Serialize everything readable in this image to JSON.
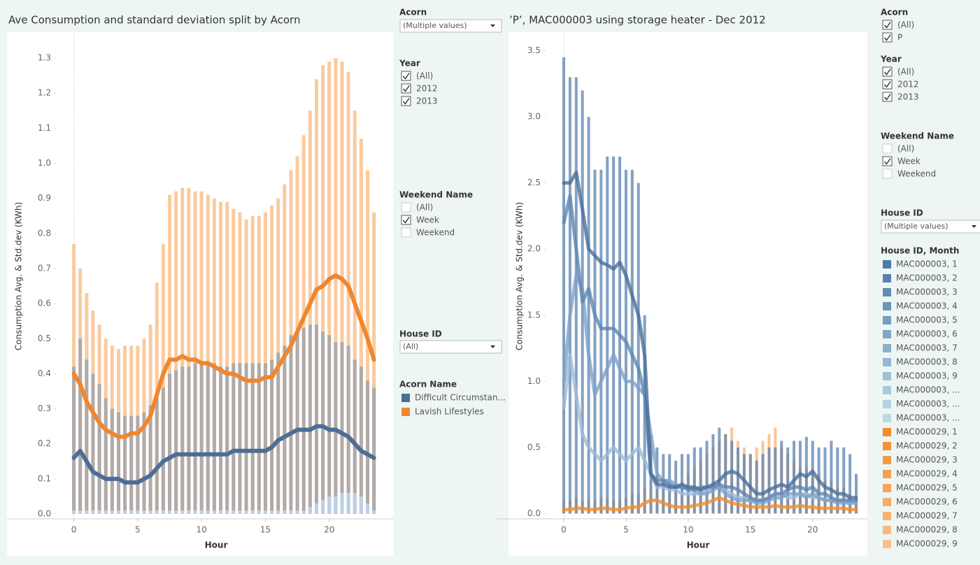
{
  "chart_data": [
    {
      "type": "combo",
      "title": "Ave Consumption and standard deviation split by Acorn",
      "xlabel": "Hour",
      "ylabel": "Consumption Avg. & Std.dev (KWh)",
      "x": [
        0,
        0.5,
        1,
        1.5,
        2,
        2.5,
        3,
        3.5,
        4,
        4.5,
        5,
        5.5,
        6,
        6.5,
        7,
        7.5,
        8,
        8.5,
        9,
        9.5,
        10,
        10.5,
        11,
        11.5,
        12,
        12.5,
        13,
        13.5,
        14,
        14.5,
        15,
        15.5,
        16,
        16.5,
        17,
        17.5,
        18,
        18.5,
        19,
        19.5,
        20,
        20.5,
        21,
        21.5,
        22,
        22.5,
        23,
        23.5
      ],
      "xlim": [
        -1.4,
        25
      ],
      "xticks": [
        0,
        5,
        10,
        15,
        20
      ],
      "ylim": [
        -0.014,
        1.37
      ],
      "yticks": [
        {
          "value": 0,
          "label": "0.0"
        },
        0.1,
        0.2,
        0.3,
        0.4,
        0.5,
        0.6,
        0.7,
        0.8,
        0.9,
        {
          "value": 1,
          "label": "1.0"
        },
        1.1,
        1.2,
        1.3
      ],
      "bars": [
        {
          "color": "#f9cb9f",
          "values": [
            0.77,
            0.7,
            0.63,
            0.58,
            0.54,
            0.5,
            0.48,
            0.47,
            0.48,
            0.48,
            0.48,
            0.5,
            0.54,
            0.66,
            0.77,
            0.91,
            0.92,
            0.93,
            0.93,
            0.92,
            0.92,
            0.91,
            0.9,
            0.89,
            0.89,
            0.87,
            0.86,
            0.84,
            0.85,
            0.85,
            0.86,
            0.88,
            0.9,
            0.94,
            0.98,
            1.02,
            1.08,
            1.15,
            1.24,
            1.28,
            1.29,
            1.3,
            1.29,
            1.26,
            1.15,
            1.07,
            0.98,
            0.86
          ]
        },
        {
          "color": "#b0aaa8",
          "values": [
            0.42,
            0.5,
            0.44,
            0.4,
            0.37,
            0.33,
            0.3,
            0.29,
            0.28,
            0.28,
            0.28,
            0.29,
            0.31,
            0.33,
            0.36,
            0.4,
            0.41,
            0.42,
            0.42,
            0.43,
            0.43,
            0.43,
            0.43,
            0.42,
            0.42,
            0.43,
            0.43,
            0.43,
            0.43,
            0.43,
            0.43,
            0.44,
            0.46,
            0.48,
            0.51,
            0.52,
            0.53,
            0.54,
            0.54,
            0.52,
            0.51,
            0.49,
            0.49,
            0.48,
            0.44,
            0.42,
            0.38,
            0.36
          ]
        },
        {
          "color": "#bcd0e6",
          "values": [
            0.01,
            0.01,
            0.01,
            0.01,
            0.01,
            0.01,
            0.01,
            0.01,
            0.01,
            0.01,
            0.01,
            0.01,
            0.01,
            0.01,
            0.01,
            0.01,
            0.01,
            0.01,
            0.01,
            0.01,
            0.01,
            0.01,
            0.01,
            0.01,
            0.01,
            0.01,
            0.01,
            0.01,
            0.01,
            0.01,
            0.01,
            0.01,
            0.01,
            0.01,
            0.01,
            0.01,
            0.01,
            0.02,
            0.03,
            0.04,
            0.05,
            0.05,
            0.06,
            0.06,
            0.06,
            0.05,
            0.03,
            0.01
          ]
        }
      ],
      "legend_title": "Acorn Name",
      "series": [
        {
          "name": "Difficult Circumstan...",
          "color": "#4e6d96",
          "values": [
            0.16,
            0.18,
            0.15,
            0.12,
            0.11,
            0.1,
            0.1,
            0.1,
            0.09,
            0.09,
            0.09,
            0.1,
            0.11,
            0.13,
            0.15,
            0.16,
            0.17,
            0.17,
            0.17,
            0.17,
            0.17,
            0.17,
            0.17,
            0.17,
            0.17,
            0.18,
            0.18,
            0.18,
            0.18,
            0.18,
            0.18,
            0.19,
            0.21,
            0.22,
            0.23,
            0.24,
            0.24,
            0.24,
            0.25,
            0.25,
            0.24,
            0.24,
            0.23,
            0.22,
            0.2,
            0.18,
            0.17,
            0.16
          ]
        },
        {
          "name": "Lavish Lifestyles",
          "color": "#f0862e",
          "values": [
            0.4,
            0.37,
            0.32,
            0.29,
            0.26,
            0.24,
            0.23,
            0.22,
            0.22,
            0.23,
            0.23,
            0.25,
            0.28,
            0.34,
            0.4,
            0.44,
            0.44,
            0.45,
            0.44,
            0.44,
            0.43,
            0.43,
            0.42,
            0.41,
            0.4,
            0.4,
            0.39,
            0.38,
            0.38,
            0.38,
            0.39,
            0.39,
            0.42,
            0.45,
            0.48,
            0.52,
            0.56,
            0.6,
            0.64,
            0.65,
            0.67,
            0.68,
            0.67,
            0.65,
            0.6,
            0.55,
            0.5,
            0.44
          ]
        }
      ]
    },
    {
      "type": "combo",
      "title": "’P’, MAC000003 using storage heater - Dec 2012",
      "xlabel": "Hour",
      "ylabel": "Consumption Avg. & Std.dev (KWh)",
      "x": [
        0,
        0.5,
        1,
        1.5,
        2,
        2.5,
        3,
        3.5,
        4,
        4.5,
        5,
        5.5,
        6,
        6.5,
        7,
        7.5,
        8,
        8.5,
        9,
        9.5,
        10,
        10.5,
        11,
        11.5,
        12,
        12.5,
        13,
        13.5,
        14,
        14.5,
        15,
        15.5,
        16,
        16.5,
        17,
        17.5,
        18,
        18.5,
        19,
        19.5,
        20,
        20.5,
        21,
        21.5,
        22,
        22.5,
        23,
        23.5
      ],
      "xlim": [
        -1.46,
        24.4
      ],
      "xticks": [
        0,
        5,
        10,
        15,
        20
      ],
      "ylim": [
        -0.04,
        3.63
      ],
      "yticks": [
        {
          "value": 0,
          "label": "0.0"
        },
        0.5,
        {
          "value": 1,
          "label": "1.0"
        },
        1.5,
        {
          "value": 2,
          "label": "2.0"
        },
        2.5,
        {
          "value": 3,
          "label": "3.0"
        },
        3.5
      ],
      "bars": [
        {
          "color": "#f6b27a",
          "values": [
            0.1,
            0.1,
            0.12,
            0.1,
            0.1,
            0.1,
            0.12,
            0.12,
            0.1,
            0.1,
            0.12,
            0.15,
            0.15,
            0.2,
            0.25,
            0.3,
            0.25,
            0.2,
            0.2,
            0.25,
            0.3,
            0.35,
            0.4,
            0.45,
            0.5,
            0.55,
            0.6,
            0.65,
            0.55,
            0.5,
            0.45,
            0.5,
            0.55,
            0.6,
            0.65,
            0.5,
            0.45,
            0.4,
            0.35,
            0.35,
            0.3,
            0.3,
            0.25,
            0.25,
            0.2,
            0.2,
            0.15,
            0.1
          ]
        },
        {
          "color": "#5b82ad",
          "values": [
            3.45,
            3.3,
            3.3,
            3.2,
            3.0,
            2.6,
            2.6,
            2.7,
            2.7,
            2.7,
            2.6,
            2.6,
            2.5,
            1.5,
            0.6,
            0.5,
            0.45,
            0.45,
            0.4,
            0.45,
            0.45,
            0.5,
            0.5,
            0.55,
            0.6,
            0.65,
            0.6,
            0.55,
            0.5,
            0.45,
            0.45,
            0.4,
            0.45,
            0.5,
            0.5,
            0.55,
            0.5,
            0.55,
            0.55,
            0.58,
            0.55,
            0.5,
            0.5,
            0.55,
            0.5,
            0.5,
            0.45,
            0.3
          ]
        }
      ],
      "series": [
        {
          "color": "#9fbcda",
          "values": [
            0.8,
            1.2,
            0.9,
            0.6,
            0.5,
            0.45,
            0.4,
            0.45,
            0.5,
            0.45,
            0.4,
            0.45,
            0.5,
            0.4,
            0.3,
            0.2,
            0.2,
            0.18,
            0.18,
            0.15,
            0.15,
            0.15,
            0.15,
            0.18,
            0.2,
            0.2,
            0.18,
            0.15,
            0.12,
            0.12,
            0.1,
            0.1,
            0.1,
            0.12,
            0.15,
            0.15,
            0.12,
            0.12,
            0.15,
            0.15,
            0.12,
            0.12,
            0.1,
            0.1,
            0.1,
            0.1,
            0.08,
            0.08
          ]
        },
        {
          "color": "#7fa3c9",
          "values": [
            1.0,
            1.5,
            1.8,
            1.7,
            1.2,
            0.9,
            1.0,
            1.1,
            1.2,
            1.1,
            1.0,
            1.0,
            0.95,
            0.9,
            0.6,
            0.3,
            0.25,
            0.25,
            0.22,
            0.2,
            0.2,
            0.18,
            0.15,
            0.15,
            0.18,
            0.2,
            0.15,
            0.12,
            0.1,
            0.1,
            0.1,
            0.08,
            0.08,
            0.1,
            0.12,
            0.12,
            0.15,
            0.15,
            0.15,
            0.12,
            0.15,
            0.12,
            0.1,
            0.1,
            0.08,
            0.08,
            0.08,
            0.08
          ]
        },
        {
          "color": "#5f87b3",
          "values": [
            2.2,
            2.4,
            2.0,
            1.6,
            1.7,
            1.5,
            1.4,
            1.4,
            1.4,
            1.35,
            1.3,
            1.2,
            1.1,
            0.9,
            0.3,
            0.25,
            0.25,
            0.22,
            0.2,
            0.2,
            0.18,
            0.18,
            0.2,
            0.2,
            0.2,
            0.22,
            0.2,
            0.2,
            0.18,
            0.15,
            0.12,
            0.1,
            0.1,
            0.12,
            0.15,
            0.15,
            0.18,
            0.2,
            0.2,
            0.18,
            0.2,
            0.15,
            0.15,
            0.12,
            0.1,
            0.1,
            0.1,
            0.1
          ]
        },
        {
          "color": "#4a6f9c",
          "values": [
            2.5,
            2.5,
            2.58,
            2.3,
            2.0,
            1.95,
            1.9,
            1.88,
            1.85,
            1.9,
            1.8,
            1.65,
            1.5,
            1.2,
            0.3,
            0.22,
            0.22,
            0.2,
            0.2,
            0.22,
            0.2,
            0.2,
            0.18,
            0.2,
            0.22,
            0.25,
            0.3,
            0.32,
            0.3,
            0.25,
            0.2,
            0.15,
            0.15,
            0.18,
            0.2,
            0.22,
            0.2,
            0.25,
            0.3,
            0.28,
            0.32,
            0.25,
            0.2,
            0.18,
            0.15,
            0.15,
            0.12,
            0.12
          ]
        },
        {
          "color": "#f28e2b",
          "values": [
            0.03,
            0.03,
            0.04,
            0.04,
            0.03,
            0.03,
            0.04,
            0.04,
            0.03,
            0.03,
            0.04,
            0.05,
            0.05,
            0.08,
            0.1,
            0.1,
            0.08,
            0.06,
            0.05,
            0.05,
            0.05,
            0.06,
            0.07,
            0.08,
            0.1,
            0.12,
            0.1,
            0.08,
            0.07,
            0.06,
            0.05,
            0.05,
            0.05,
            0.05,
            0.06,
            0.05,
            0.05,
            0.05,
            0.06,
            0.05,
            0.05,
            0.04,
            0.04,
            0.04,
            0.04,
            0.04,
            0.03,
            0.03
          ]
        }
      ],
      "legend_title": "House ID, Month",
      "legend": [
        {
          "name": "MAC000003, 1",
          "color": "#4e79a7"
        },
        {
          "name": "MAC000003, 2",
          "color": "#5882ad"
        },
        {
          "name": "MAC000003, 3",
          "color": "#628bb3"
        },
        {
          "name": "MAC000003, 4",
          "color": "#6c94b9"
        },
        {
          "name": "MAC000003, 5",
          "color": "#769dbf"
        },
        {
          "name": "MAC000003, 6",
          "color": "#80a6c5"
        },
        {
          "name": "MAC000003, 7",
          "color": "#8aafcb"
        },
        {
          "name": "MAC000003, 8",
          "color": "#94b8d1"
        },
        {
          "name": "MAC000003, 9",
          "color": "#9ec1d7"
        },
        {
          "name": "MAC000003, ...",
          "color": "#a8c9dd"
        },
        {
          "name": "MAC000003, ...",
          "color": "#b2d1e3"
        },
        {
          "name": "MAC000003, ...",
          "color": "#bcd9e9"
        },
        {
          "name": "MAC000029, 1",
          "color": "#f28e2b"
        },
        {
          "name": "MAC000029, 2",
          "color": "#f39437"
        },
        {
          "name": "MAC000029, 3",
          "color": "#f49a43"
        },
        {
          "name": "MAC000029, 4",
          "color": "#f5a04f"
        },
        {
          "name": "MAC000029, 5",
          "color": "#f6a65b"
        },
        {
          "name": "MAC000029, 6",
          "color": "#f7ac67"
        },
        {
          "name": "MAC000029, 7",
          "color": "#f8b273"
        },
        {
          "name": "MAC000029, 8",
          "color": "#f9b87f"
        },
        {
          "name": "MAC000029, 9",
          "color": "#fabe8b"
        }
      ]
    }
  ],
  "filters": [
    [
      {
        "title": "Acorn",
        "dropdown": "(Multiple values)"
      },
      {
        "title": "Year",
        "options": [
          {
            "label": "(All)",
            "checked": true
          },
          {
            "label": "2012",
            "checked": true
          },
          {
            "label": "2013",
            "checked": true
          }
        ]
      },
      {
        "title": "Weekend Name",
        "options": [
          {
            "label": "(All)",
            "checked": false
          },
          {
            "label": "Week",
            "checked": true
          },
          {
            "label": "Weekend",
            "checked": false
          }
        ]
      },
      {
        "title": "House ID",
        "dropdown": "(All)"
      }
    ],
    [
      {
        "title": "Acorn",
        "options": [
          {
            "label": "(All)",
            "checked": true
          },
          {
            "label": "P",
            "checked": true
          }
        ]
      },
      {
        "title": "Year",
        "options": [
          {
            "label": "(All)",
            "checked": true
          },
          {
            "label": "2012",
            "checked": true
          },
          {
            "label": "2013",
            "checked": true
          }
        ]
      },
      {
        "title": "Weekend Name",
        "options": [
          {
            "label": "(All)",
            "checked": false
          },
          {
            "label": "Week",
            "checked": true
          },
          {
            "label": "Weekend",
            "checked": false
          }
        ]
      },
      {
        "title": "House ID",
        "dropdown": "(Multiple values)"
      }
    ]
  ]
}
